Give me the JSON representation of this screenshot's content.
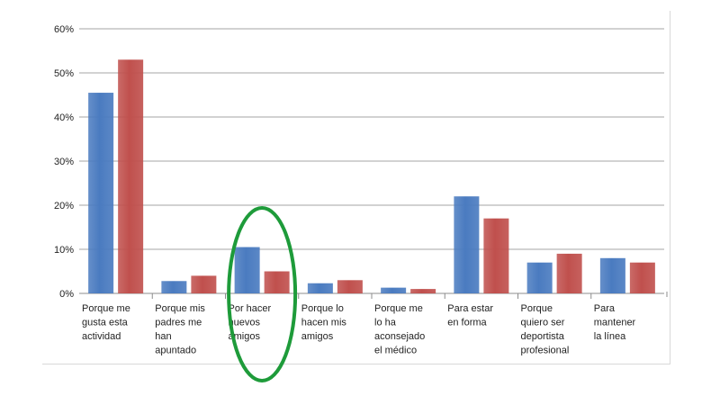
{
  "chart_data": {
    "type": "bar",
    "title": "",
    "xlabel": "",
    "ylabel": "",
    "ylim": [
      0,
      60
    ],
    "y_ticks": [
      "0%",
      "10%",
      "20%",
      "30%",
      "40%",
      "50%",
      "60%"
    ],
    "grid": true,
    "categories": [
      [
        "Porque me",
        "gusta esta",
        "actividad"
      ],
      [
        "Porque mis",
        "padres me",
        "han",
        "apuntado"
      ],
      [
        "Por hacer",
        "nuevos",
        "amigos"
      ],
      [
        "Porque lo",
        "hacen mis",
        "amigos"
      ],
      [
        "Porque me",
        "lo ha",
        "aconsejado",
        "el médico"
      ],
      [
        "Para estar",
        "en forma"
      ],
      [
        "Porque",
        "quiero ser",
        "deportista",
        "profesional"
      ],
      [
        "Para",
        "mantener",
        "la línea"
      ]
    ],
    "series": [
      {
        "color": "#4a7bc0",
        "values": [
          45.5,
          2.8,
          10.5,
          2.3,
          1.3,
          22,
          7,
          8
        ]
      },
      {
        "color": "#c0504d",
        "values": [
          53,
          4,
          5,
          3,
          1,
          17,
          9,
          7
        ]
      }
    ],
    "highlight": {
      "category_index": 2,
      "shape": "ellipse",
      "color": "#1e9b3a"
    }
  }
}
